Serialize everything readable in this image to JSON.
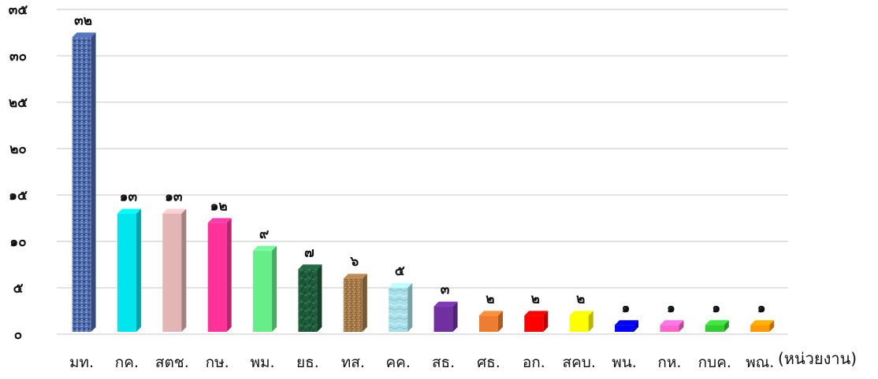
{
  "chart_data": {
    "type": "bar",
    "categories": [
      "มท.",
      "กค.",
      "สตช.",
      "กษ.",
      "พม.",
      "ยธ.",
      "ทส.",
      "คค.",
      "สธ.",
      "ศธ.",
      "อก.",
      "สคบ.",
      "พน.",
      "กห.",
      "กบค.",
      "พณ."
    ],
    "values": [
      32,
      13,
      13,
      12,
      9,
      7,
      6,
      5,
      3,
      2,
      2,
      2,
      1,
      1,
      1,
      1
    ],
    "data_labels": [
      "๓๒",
      "๑๓",
      "๑๓",
      "๑๒",
      "๙",
      "๗",
      "๖",
      "๕",
      "๓",
      "๒",
      "๒",
      "๒",
      "๑",
      "๑",
      "๑",
      "๑"
    ],
    "bar_colors": [
      "#4a67a8",
      "#00e5ee",
      "#e3b5b5",
      "#ff3399",
      "#66ee88",
      "#1f5c3c",
      "#a77a4a",
      "#a8dfe8",
      "#7030a0",
      "#ed7d31",
      "#ff0000",
      "#ffff00",
      "#0000ff",
      "#ff66cc",
      "#33cc33",
      "#ff9900"
    ],
    "bar_patterns": [
      "denim",
      "",
      "",
      "",
      "",
      "marble",
      "granite",
      "water",
      "",
      "",
      "",
      "",
      "",
      "",
      "",
      ""
    ],
    "y_ticks": [
      0,
      5,
      10,
      15,
      20,
      25,
      30,
      35
    ],
    "y_tick_labels": [
      "๐",
      "๕",
      "๑๐",
      "๑๕",
      "๒๐",
      "๒๕",
      "๓๐",
      "๓๕"
    ],
    "ylim": [
      0,
      35
    ],
    "grid": true,
    "legend": false,
    "xlabel": "(หน่วยงาน)",
    "ylabel": "",
    "title": ""
  }
}
